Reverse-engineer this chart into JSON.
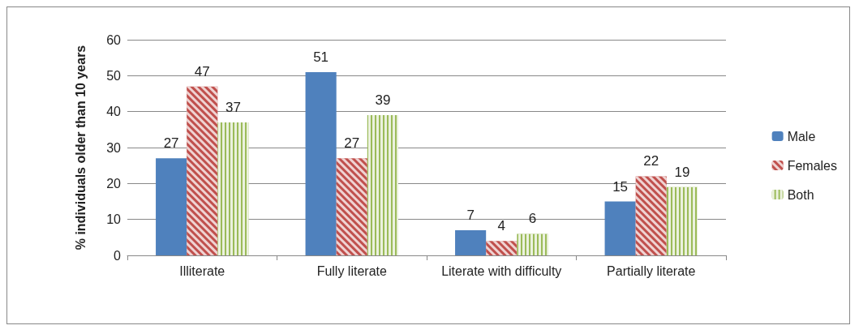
{
  "chart_data": {
    "type": "bar",
    "ylabel": "% individuals older than 10 years",
    "categories": [
      "Illiterate",
      "Fully literate",
      "Literate with difficulty",
      "Partially literate"
    ],
    "series": [
      {
        "name": "Male",
        "color": "#4f81bd",
        "values": [
          27,
          51,
          7,
          15
        ]
      },
      {
        "name": "Females",
        "color": "#c0504d",
        "values": [
          47,
          27,
          4,
          22
        ]
      },
      {
        "name": "Both",
        "color": "#9bbb59",
        "values": [
          37,
          39,
          6,
          19
        ]
      }
    ],
    "ylim": [
      0,
      60
    ],
    "yticks": [
      0,
      10,
      20,
      30,
      40,
      50,
      60
    ],
    "grid": "y",
    "legend": "right",
    "data_labels": true
  }
}
